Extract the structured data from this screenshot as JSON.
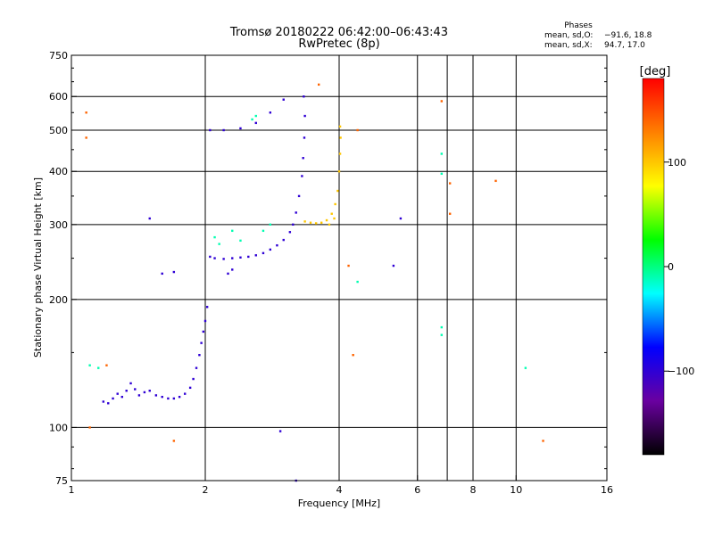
{
  "chart_data": {
    "type": "scatter",
    "title": "Tromsø 20180222 06:42:00–06:43:43",
    "subtitle": "RwPretec (8p)",
    "xlabel": "Frequency [MHz]",
    "ylabel": "Stationary phase Virtual Height [km]",
    "x_scale": "log",
    "y_scale": "log",
    "xlim": [
      1,
      16
    ],
    "ylim": [
      75,
      750
    ],
    "x_ticks": [
      1,
      2,
      4,
      6,
      8,
      10,
      16
    ],
    "x_gridlines": [
      2,
      4,
      6,
      7,
      8,
      10
    ],
    "y_ticks": [
      75,
      100,
      200,
      300,
      400,
      500,
      600,
      750
    ],
    "grid": true,
    "stats_title": "Phases",
    "stats": [
      {
        "label": "mean, sd,O:",
        "value": "−91.6, 18.8"
      },
      {
        "label": "mean, sd,X:",
        "value": "94.7, 17.0"
      }
    ],
    "colorbar": {
      "label": "[deg]",
      "range": [
        -180,
        180
      ],
      "ticks": [
        100,
        0,
        -100
      ],
      "colors": [
        "#000000",
        "#6a00a0",
        "#0000ff",
        "#00ffff",
        "#00ff00",
        "#ffff00",
        "#ff8000",
        "#ff0000"
      ]
    },
    "series": [
      {
        "points": [
          [
            1.18,
            115
          ],
          [
            1.21,
            114
          ],
          [
            1.24,
            117
          ],
          [
            1.27,
            120
          ],
          [
            1.3,
            118
          ],
          [
            1.33,
            122
          ],
          [
            1.36,
            127
          ],
          [
            1.39,
            123
          ],
          [
            1.42,
            119
          ],
          [
            1.46,
            121
          ],
          [
            1.5,
            122
          ],
          [
            1.55,
            119
          ],
          [
            1.6,
            118
          ],
          [
            1.65,
            117
          ],
          [
            1.7,
            117
          ],
          [
            1.75,
            118
          ],
          [
            1.8,
            120
          ],
          [
            1.85,
            124
          ],
          [
            1.88,
            130
          ],
          [
            1.91,
            138
          ],
          [
            1.94,
            148
          ],
          [
            1.96,
            158
          ],
          [
            1.98,
            168
          ],
          [
            2.0,
            178
          ],
          [
            2.02,
            192
          ],
          [
            2.05,
            252
          ],
          [
            2.1,
            250
          ],
          [
            2.2,
            249
          ],
          [
            2.3,
            250
          ],
          [
            2.4,
            251
          ],
          [
            2.5,
            252
          ],
          [
            2.6,
            254
          ],
          [
            2.7,
            257
          ],
          [
            2.8,
            262
          ],
          [
            2.9,
            268
          ],
          [
            3.0,
            276
          ],
          [
            3.1,
            288
          ],
          [
            3.15,
            300
          ],
          [
            3.2,
            320
          ],
          [
            3.25,
            350
          ],
          [
            3.3,
            390
          ],
          [
            3.32,
            430
          ],
          [
            3.34,
            480
          ],
          [
            3.35,
            540
          ],
          [
            3.33,
            600
          ],
          [
            2.05,
            500
          ],
          [
            2.2,
            500
          ],
          [
            2.4,
            505
          ],
          [
            2.6,
            520
          ],
          [
            2.8,
            550
          ],
          [
            3.0,
            590
          ],
          [
            2.25,
            230
          ],
          [
            2.3,
            235
          ],
          [
            1.5,
            310
          ],
          [
            1.6,
            230
          ],
          [
            1.7,
            232
          ],
          [
            5.5,
            310
          ],
          [
            5.3,
            240
          ],
          [
            2.95,
            98
          ],
          [
            3.2,
            75
          ]
        ],
        "phase": -100
      },
      {
        "points": [
          [
            3.35,
            305
          ],
          [
            3.45,
            303
          ],
          [
            3.55,
            302
          ],
          [
            3.65,
            303
          ],
          [
            3.75,
            307
          ],
          [
            3.85,
            318
          ],
          [
            3.92,
            335
          ],
          [
            3.97,
            360
          ],
          [
            4.0,
            400
          ],
          [
            4.02,
            440
          ],
          [
            4.03,
            480
          ],
          [
            4.02,
            510
          ],
          [
            3.8,
            300
          ],
          [
            3.9,
            310
          ]
        ],
        "phase": 100
      },
      {
        "points": [
          [
            1.1,
            140
          ],
          [
            1.15,
            138
          ],
          [
            2.1,
            280
          ],
          [
            2.15,
            270
          ],
          [
            2.7,
            290
          ],
          [
            2.8,
            300
          ],
          [
            2.55,
            530
          ],
          [
            2.6,
            540
          ],
          [
            4.4,
            220
          ],
          [
            6.8,
            440
          ],
          [
            6.8,
            395
          ],
          [
            6.8,
            172
          ],
          [
            6.8,
            165
          ],
          [
            10.5,
            138
          ],
          [
            2.3,
            290
          ],
          [
            2.4,
            275
          ]
        ],
        "phase": -10
      },
      {
        "points": [
          [
            1.08,
            550
          ],
          [
            1.08,
            480
          ],
          [
            1.2,
            140
          ],
          [
            1.7,
            93
          ],
          [
            4.2,
            240
          ],
          [
            4.3,
            148
          ],
          [
            4.4,
            500
          ],
          [
            6.8,
            585
          ],
          [
            7.1,
            375
          ],
          [
            7.1,
            318
          ],
          [
            9.0,
            380
          ],
          [
            11.5,
            93
          ],
          [
            3.6,
            640
          ],
          [
            1.1,
            100
          ]
        ],
        "phase": 140
      }
    ]
  }
}
